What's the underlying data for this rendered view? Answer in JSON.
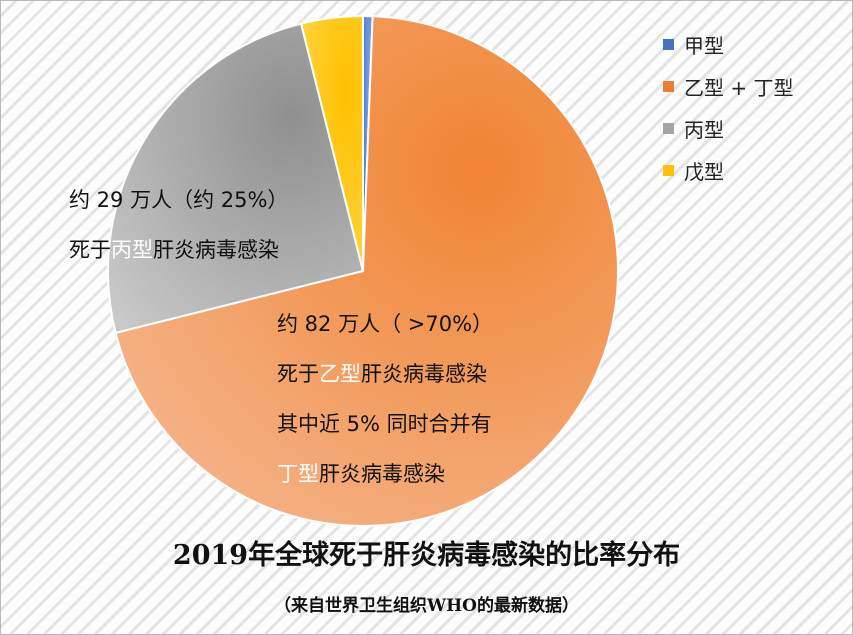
{
  "chart_data": {
    "type": "pie",
    "title": "2019年全球死于肝炎病毒感染的比率分布",
    "subtitle": "（来自世界卫生组织WHO的最新数据）",
    "legend_position": "top-right",
    "categories": [
      "甲型",
      "乙型 + 丁型",
      "丙型",
      "戊型"
    ],
    "values": [
      0.6,
      70.5,
      25.0,
      3.9
    ],
    "colors": [
      "#4472c4",
      "#ed7d31",
      "#a5a5a5",
      "#ffc000"
    ],
    "annotations": {
      "bing": {
        "line1": "约 29 万人（约 25%）",
        "line2_pre": "死于",
        "line2_hl": "丙型",
        "line2_post": "肝炎病毒感染"
      },
      "yi": {
        "line1": "约 82 万人（ >70%）",
        "line2_pre": "死于",
        "line2_hl": "乙型",
        "line2_post": "肝炎病毒感染",
        "line3": "其中近 5% 同时合并有",
        "line4_hl": "丁型",
        "line4_post": "肝炎病毒感染"
      }
    }
  }
}
